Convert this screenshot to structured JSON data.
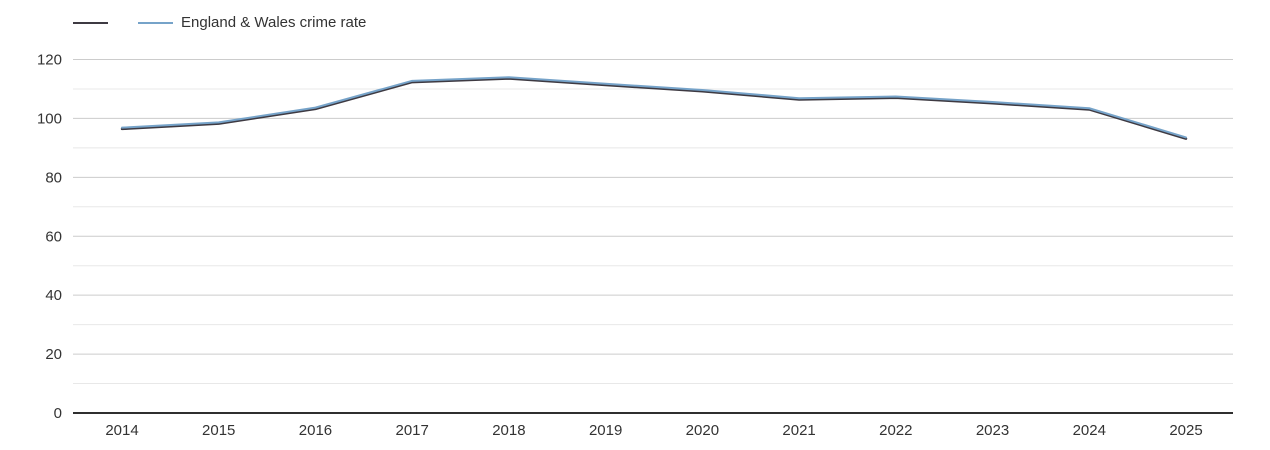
{
  "chart_data": {
    "type": "line",
    "title": "",
    "xlabel": "",
    "ylabel": "",
    "x": [
      2014,
      2015,
      2016,
      2017,
      2018,
      2019,
      2020,
      2021,
      2022,
      2023,
      2024,
      2025
    ],
    "series": [
      {
        "name": "",
        "color": "#3e3a42",
        "values": [
          96.6,
          98.4,
          103.4,
          112.5,
          113.7,
          111.5,
          109.4,
          106.6,
          107.2,
          105.3,
          103.2,
          93.3
        ]
      },
      {
        "name": "England & Wales crime rate",
        "color": "#76a3c9",
        "values": [
          96.6,
          98.4,
          103.4,
          112.5,
          113.7,
          111.5,
          109.4,
          106.6,
          107.2,
          105.3,
          103.2,
          93.3
        ]
      }
    ],
    "ylim": [
      0,
      120
    ],
    "y_major_step": 20,
    "y_minor_step": 10,
    "y_tick_labels": [
      "0",
      "20",
      "40",
      "60",
      "80",
      "100",
      "120"
    ],
    "grid": true,
    "legend_position": "top-left",
    "colors": {
      "grid_major": "#cccccc",
      "grid_minor": "#e8e8e8",
      "axis_line": "#2f2f2f",
      "tick_text": "#333333",
      "background": "#ffffff"
    }
  }
}
